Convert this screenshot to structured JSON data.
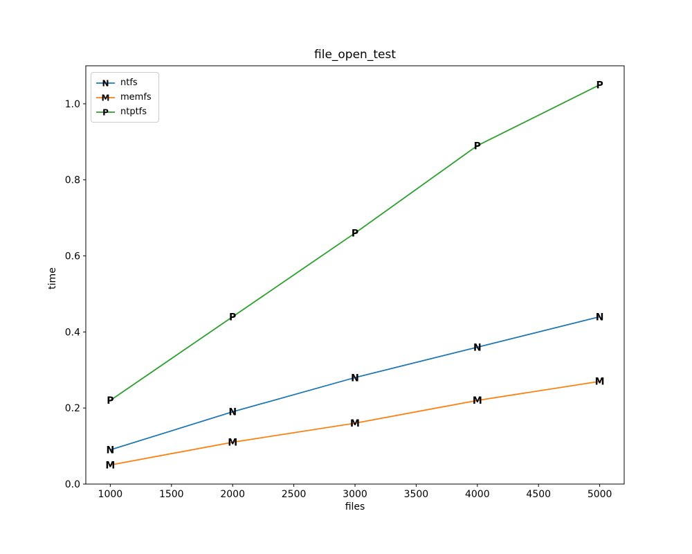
{
  "figure": {
    "background": "#ffffff"
  },
  "chart_data": {
    "type": "line",
    "title": "file_open_test",
    "xlabel": "files",
    "ylabel": "time",
    "x": [
      1000,
      2000,
      3000,
      4000,
      5000
    ],
    "series": [
      {
        "name": "ntfs",
        "marker": "N",
        "color": "#1f77b4",
        "values": [
          0.09,
          0.19,
          0.28,
          0.36,
          0.44
        ]
      },
      {
        "name": "memfs",
        "marker": "M",
        "color": "#ff7f0e",
        "values": [
          0.05,
          0.11,
          0.16,
          0.22,
          0.27
        ]
      },
      {
        "name": "ntptfs",
        "marker": "P",
        "color": "#2ca02c",
        "values": [
          0.22,
          0.44,
          0.66,
          0.89,
          1.05
        ]
      }
    ],
    "xlim": [
      800,
      5200
    ],
    "ylim": [
      0.0,
      1.1
    ],
    "xticks": [
      1000,
      1500,
      2000,
      2500,
      3000,
      3500,
      4000,
      4500,
      5000
    ],
    "yticks": [
      0.0,
      0.2,
      0.4,
      0.6,
      0.8,
      1.0
    ],
    "ytick_decimals": 1,
    "grid": false,
    "legend_position": "upper left",
    "axis_color": "#000000"
  }
}
